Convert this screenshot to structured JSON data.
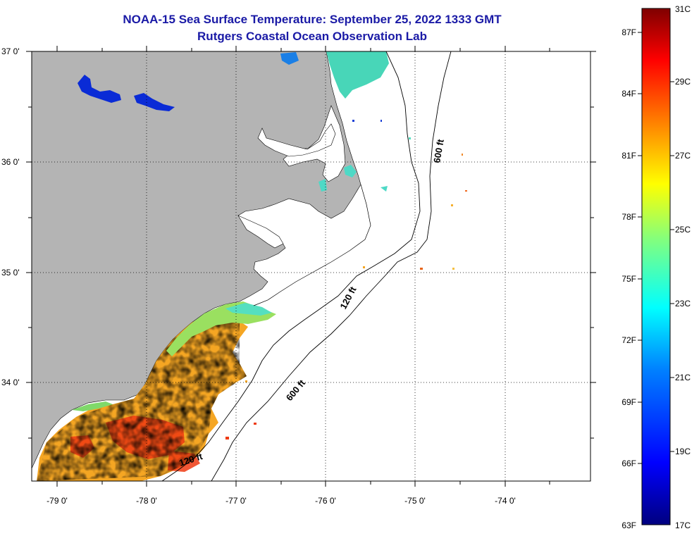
{
  "header": {
    "title": "NOAA-15 Sea Surface Temperature:  September 25, 2022 1333 GMT",
    "subtitle": "Rutgers Coastal Ocean Observation Lab"
  },
  "map": {
    "lon_labels": [
      "-79 0'",
      "-78 0'",
      "-77 0'",
      "-76 0'",
      "-75 0'",
      "-74 0'"
    ],
    "lat_labels": [
      "37 0'",
      "36 0'",
      "35 0'",
      "34 0'"
    ],
    "contour_labels": [
      "600 ft",
      "120 ft",
      "600 ft",
      "120 ft"
    ]
  },
  "colorbar": {
    "range_c": [
      17,
      31
    ],
    "celsius_labels": [
      "31C",
      "29C",
      "27C",
      "25C",
      "23C",
      "21C",
      "19C",
      "17C"
    ],
    "fahrenheit_labels": [
      "87F",
      "84F",
      "81F",
      "78F",
      "75F",
      "72F",
      "69F",
      "66F",
      "63F"
    ],
    "colors": [
      "#00007f",
      "#0000ff",
      "#0080ff",
      "#00ffff",
      "#80ff80",
      "#ffff00",
      "#ff8000",
      "#ff0000",
      "#7f0000"
    ]
  },
  "colors": {
    "land": "#b4b4b4",
    "title": "#1a1aa6",
    "grid": "#000000"
  }
}
